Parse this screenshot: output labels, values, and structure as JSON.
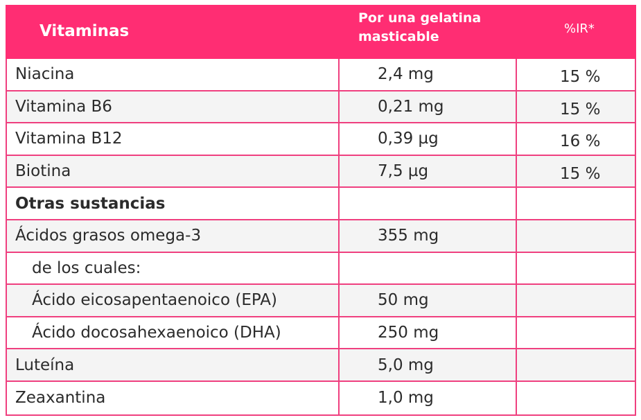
{
  "header": {
    "col1": "Vitaminas",
    "col2": "Por una gelatina masticable",
    "col3": "%IR*"
  },
  "rows": [
    {
      "name": "Niacina",
      "amount": "2,4 mg",
      "ir": "15 %"
    },
    {
      "name": "Vitamina B6",
      "amount": "0,21 mg",
      "ir": "15 %"
    },
    {
      "name": "Vitamina B12",
      "amount": "0,39 µg",
      "ir": "16 %"
    },
    {
      "name": "Biotina",
      "amount": "7,5 µg",
      "ir": "15 %"
    },
    {
      "name": "Otras sustancias",
      "amount": "",
      "ir": ""
    },
    {
      "name": "Ácidos grasos omega-3",
      "amount": "355 mg",
      "ir": ""
    },
    {
      "name": "de los cuales:",
      "amount": "",
      "ir": ""
    },
    {
      "name": "Ácido eicosapentaenoico (EPA)",
      "amount": "50 mg",
      "ir": ""
    },
    {
      "name": "Ácido docosahexaenoico (DHA)",
      "amount": "250 mg",
      "ir": ""
    },
    {
      "name": "Luteína",
      "amount": "5,0 mg",
      "ir": ""
    },
    {
      "name": "Zeaxantina",
      "amount": "1,0 mg",
      "ir": ""
    }
  ],
  "colors": {
    "accent": "#ff2d73",
    "border": "#ef3f7f",
    "shade": "#f4f4f4"
  }
}
